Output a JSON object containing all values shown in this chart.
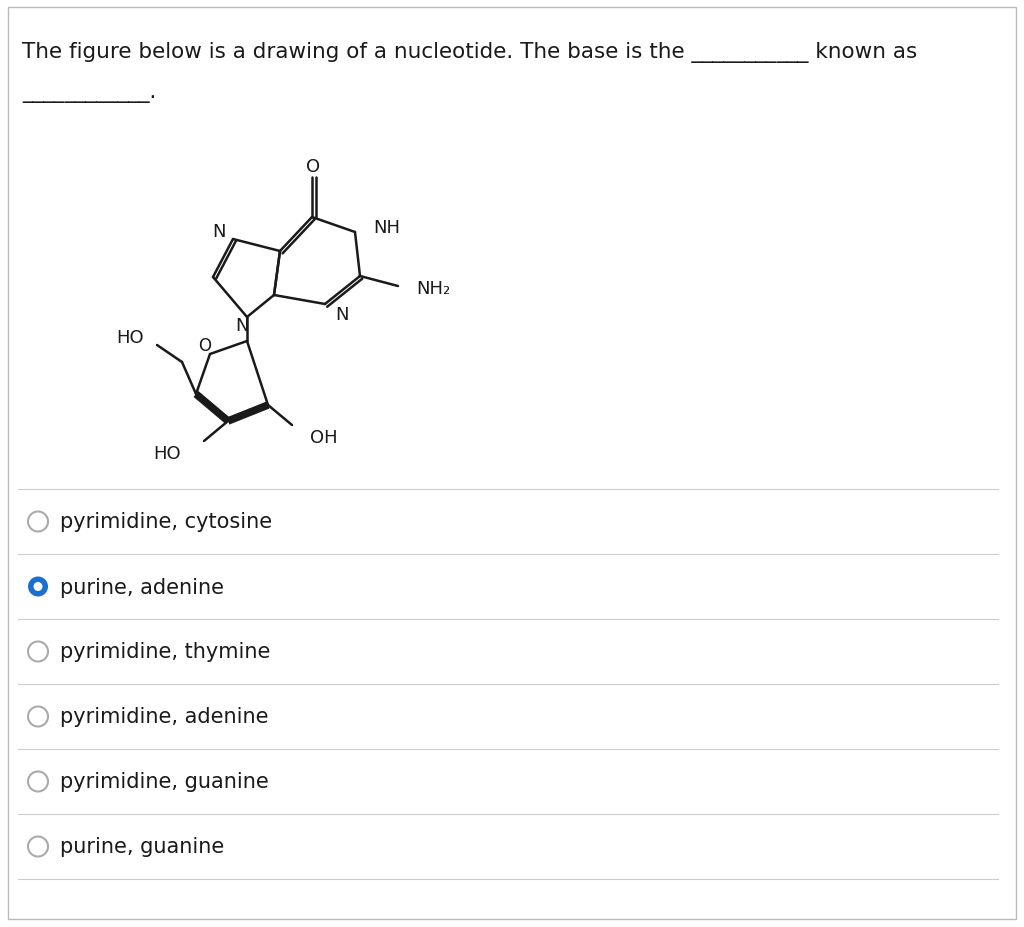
{
  "title_line1": "The figure below is a drawing of a nucleotide. The base is the ___________ known as",
  "title_line2": "____________.",
  "bg_color": "#ffffff",
  "text_color": "#1a1a1a",
  "options": [
    {
      "text": "pyrimidine, cytosine",
      "selected": false
    },
    {
      "text": "purine, adenine",
      "selected": true
    },
    {
      "text": "pyrimidine, thymine",
      "selected": false
    },
    {
      "text": "pyrimidine, adenine",
      "selected": false
    },
    {
      "text": "pyrimidine, guanine",
      "selected": false
    },
    {
      "text": "purine, guanine",
      "selected": false
    }
  ],
  "selected_color": "#1a6fcf",
  "divider_color": "#cccccc",
  "option_fontsize": 15,
  "struct_lw": 1.8,
  "struct_fontsize": 13
}
